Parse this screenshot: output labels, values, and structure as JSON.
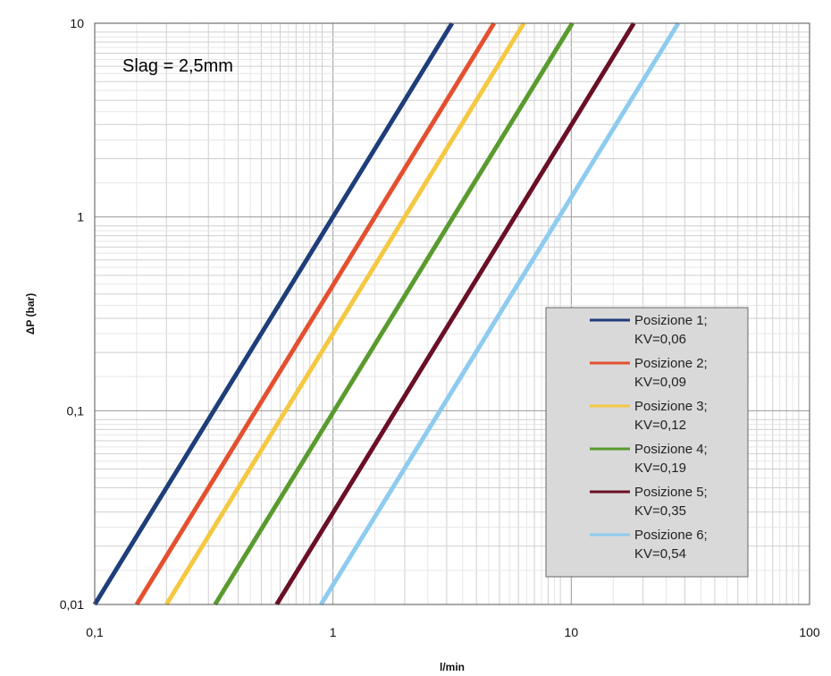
{
  "chart_data": {
    "type": "line",
    "title": "",
    "xlabel": "l/min",
    "ylabel": "ΔP (bar)",
    "xscale": "log",
    "yscale": "log",
    "xlim": [
      0.1,
      100
    ],
    "ylim": [
      0.01,
      10
    ],
    "grid": true,
    "legend_position": "right",
    "x_ticks": [
      "0,1",
      "1",
      "10",
      "100"
    ],
    "y_ticks": [
      "0,01",
      "0,1",
      "1",
      "10"
    ],
    "annotation": "Slag = 2,5mm",
    "series": [
      {
        "name": "Posizione 1;",
        "sub": "KV=0,06",
        "color": "#1f3d7a",
        "x": [
          0.1,
          3.16
        ],
        "y": [
          0.01,
          10
        ]
      },
      {
        "name": "Posizione 2;",
        "sub": "KV=0,09",
        "color": "#e4502f",
        "x": [
          0.15,
          4.74
        ],
        "y": [
          0.01,
          10
        ]
      },
      {
        "name": "Posizione 3;",
        "sub": "KV=0,12",
        "color": "#f5c842",
        "x": [
          0.2,
          6.32
        ],
        "y": [
          0.01,
          10
        ]
      },
      {
        "name": "Posizione 4;",
        "sub": "KV=0,19",
        "color": "#5a9a2e",
        "x": [
          0.32,
          10.1
        ],
        "y": [
          0.01,
          10
        ]
      },
      {
        "name": "Posizione 5;",
        "sub": "KV=0,35",
        "color": "#6a0f24",
        "x": [
          0.58,
          18.3
        ],
        "y": [
          0.01,
          10
        ]
      },
      {
        "name": "Posizione 6;",
        "sub": "KV=0,54",
        "color": "#8ecbf0",
        "x": [
          0.89,
          28.1
        ],
        "y": [
          0.01,
          10
        ]
      }
    ]
  }
}
